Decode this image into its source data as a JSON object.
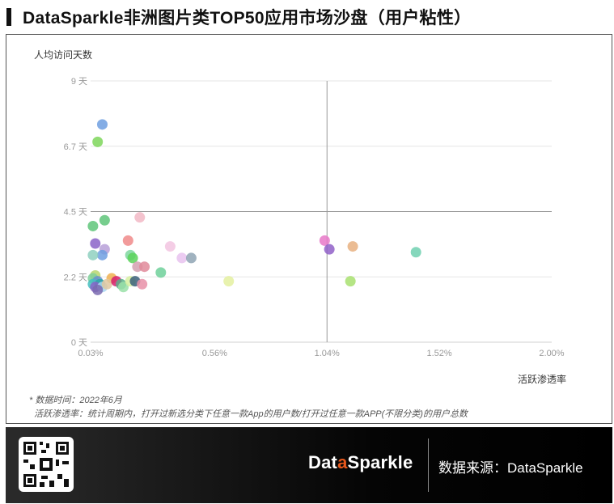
{
  "title": "DataSparkle非洲图片类TOP50应用市场沙盘（用户粘性）",
  "notes": {
    "line1": "* 数据时间：2022年6月",
    "line2": "活跃渗透率：统计周期内，打开过新选分类下任意一款App的用户数/打开过任意一款APP(不限分类)的用户总数"
  },
  "footer": {
    "brand_pre": "Dat",
    "brand_dot": "a",
    "brand_post": "Sparkle",
    "source": "数据来源：DataSparkle"
  },
  "chart_data": {
    "type": "scatter",
    "ylabel": "人均访问天数",
    "xlabel": "活跃渗透率",
    "xlim": [
      0.03,
      2.0
    ],
    "ylim": [
      0,
      9
    ],
    "x_ticks": [
      "0.03%",
      "0.56%",
      "1.04%",
      "1.52%",
      "2.00%"
    ],
    "x_tick_values": [
      0.03,
      0.56,
      1.04,
      1.52,
      2.0
    ],
    "y_ticks": [
      "0 天",
      "2.2 天",
      "4.5 天",
      "6.7 天",
      "9 天"
    ],
    "y_tick_values": [
      0,
      2.25,
      4.5,
      6.75,
      9
    ],
    "x_unit": "%",
    "y_unit": "天",
    "reference_lines": {
      "x": 1.04,
      "y": 4.5
    },
    "grid": "horizontal",
    "points": [
      {
        "x": 0.08,
        "y": 7.5,
        "color": "#6f9fe0"
      },
      {
        "x": 0.06,
        "y": 6.9,
        "color": "#7ed65a"
      },
      {
        "x": 0.09,
        "y": 4.2,
        "color": "#5fc67a"
      },
      {
        "x": 0.04,
        "y": 4.0,
        "color": "#5fc67a"
      },
      {
        "x": 0.24,
        "y": 4.3,
        "color": "#f2b8c6"
      },
      {
        "x": 0.05,
        "y": 3.4,
        "color": "#8a63c8"
      },
      {
        "x": 0.09,
        "y": 3.2,
        "color": "#b7a0d8"
      },
      {
        "x": 0.08,
        "y": 3.0,
        "color": "#6f9fe0"
      },
      {
        "x": 0.04,
        "y": 3.0,
        "color": "#8fd0c0"
      },
      {
        "x": 0.19,
        "y": 3.5,
        "color": "#f08a8a"
      },
      {
        "x": 0.2,
        "y": 3.0,
        "color": "#7fd7a0"
      },
      {
        "x": 0.21,
        "y": 2.9,
        "color": "#5ad45a"
      },
      {
        "x": 0.37,
        "y": 3.3,
        "color": "#f2c4e0"
      },
      {
        "x": 0.42,
        "y": 2.9,
        "color": "#e7c2ef"
      },
      {
        "x": 0.46,
        "y": 2.9,
        "color": "#8fa4b4"
      },
      {
        "x": 0.23,
        "y": 2.6,
        "color": "#d4a0b0"
      },
      {
        "x": 0.26,
        "y": 2.6,
        "color": "#e08a9a"
      },
      {
        "x": 0.33,
        "y": 2.4,
        "color": "#6fd09a"
      },
      {
        "x": 0.05,
        "y": 2.3,
        "color": "#b7d66e"
      },
      {
        "x": 0.04,
        "y": 2.2,
        "color": "#7fcf9a"
      },
      {
        "x": 0.06,
        "y": 2.1,
        "color": "#6a8fd0"
      },
      {
        "x": 0.04,
        "y": 2.0,
        "color": "#44c0c0"
      },
      {
        "x": 0.07,
        "y": 2.0,
        "color": "#2aa7a7"
      },
      {
        "x": 0.05,
        "y": 1.9,
        "color": "#8a63c8"
      },
      {
        "x": 0.08,
        "y": 1.9,
        "color": "#a8d6f0"
      },
      {
        "x": 0.12,
        "y": 2.2,
        "color": "#f0b050"
      },
      {
        "x": 0.1,
        "y": 2.0,
        "color": "#e0c8a0"
      },
      {
        "x": 0.14,
        "y": 2.1,
        "color": "#d61e6e"
      },
      {
        "x": 0.16,
        "y": 2.0,
        "color": "#5ab08a"
      },
      {
        "x": 0.17,
        "y": 1.9,
        "color": "#9ae0a8"
      },
      {
        "x": 0.2,
        "y": 2.1,
        "color": "#d6f0a0"
      },
      {
        "x": 0.22,
        "y": 2.1,
        "color": "#3a5f7a"
      },
      {
        "x": 0.25,
        "y": 2.0,
        "color": "#e890a8"
      },
      {
        "x": 0.06,
        "y": 1.8,
        "color": "#7a6ab0"
      },
      {
        "x": 0.62,
        "y": 2.1,
        "color": "#e4f0a0"
      },
      {
        "x": 1.03,
        "y": 3.5,
        "color": "#e878c8"
      },
      {
        "x": 1.05,
        "y": 3.2,
        "color": "#9060c8"
      },
      {
        "x": 1.15,
        "y": 3.3,
        "color": "#e8b080"
      },
      {
        "x": 1.14,
        "y": 2.1,
        "color": "#a8e070"
      },
      {
        "x": 1.42,
        "y": 3.1,
        "color": "#70d0b0"
      }
    ]
  }
}
